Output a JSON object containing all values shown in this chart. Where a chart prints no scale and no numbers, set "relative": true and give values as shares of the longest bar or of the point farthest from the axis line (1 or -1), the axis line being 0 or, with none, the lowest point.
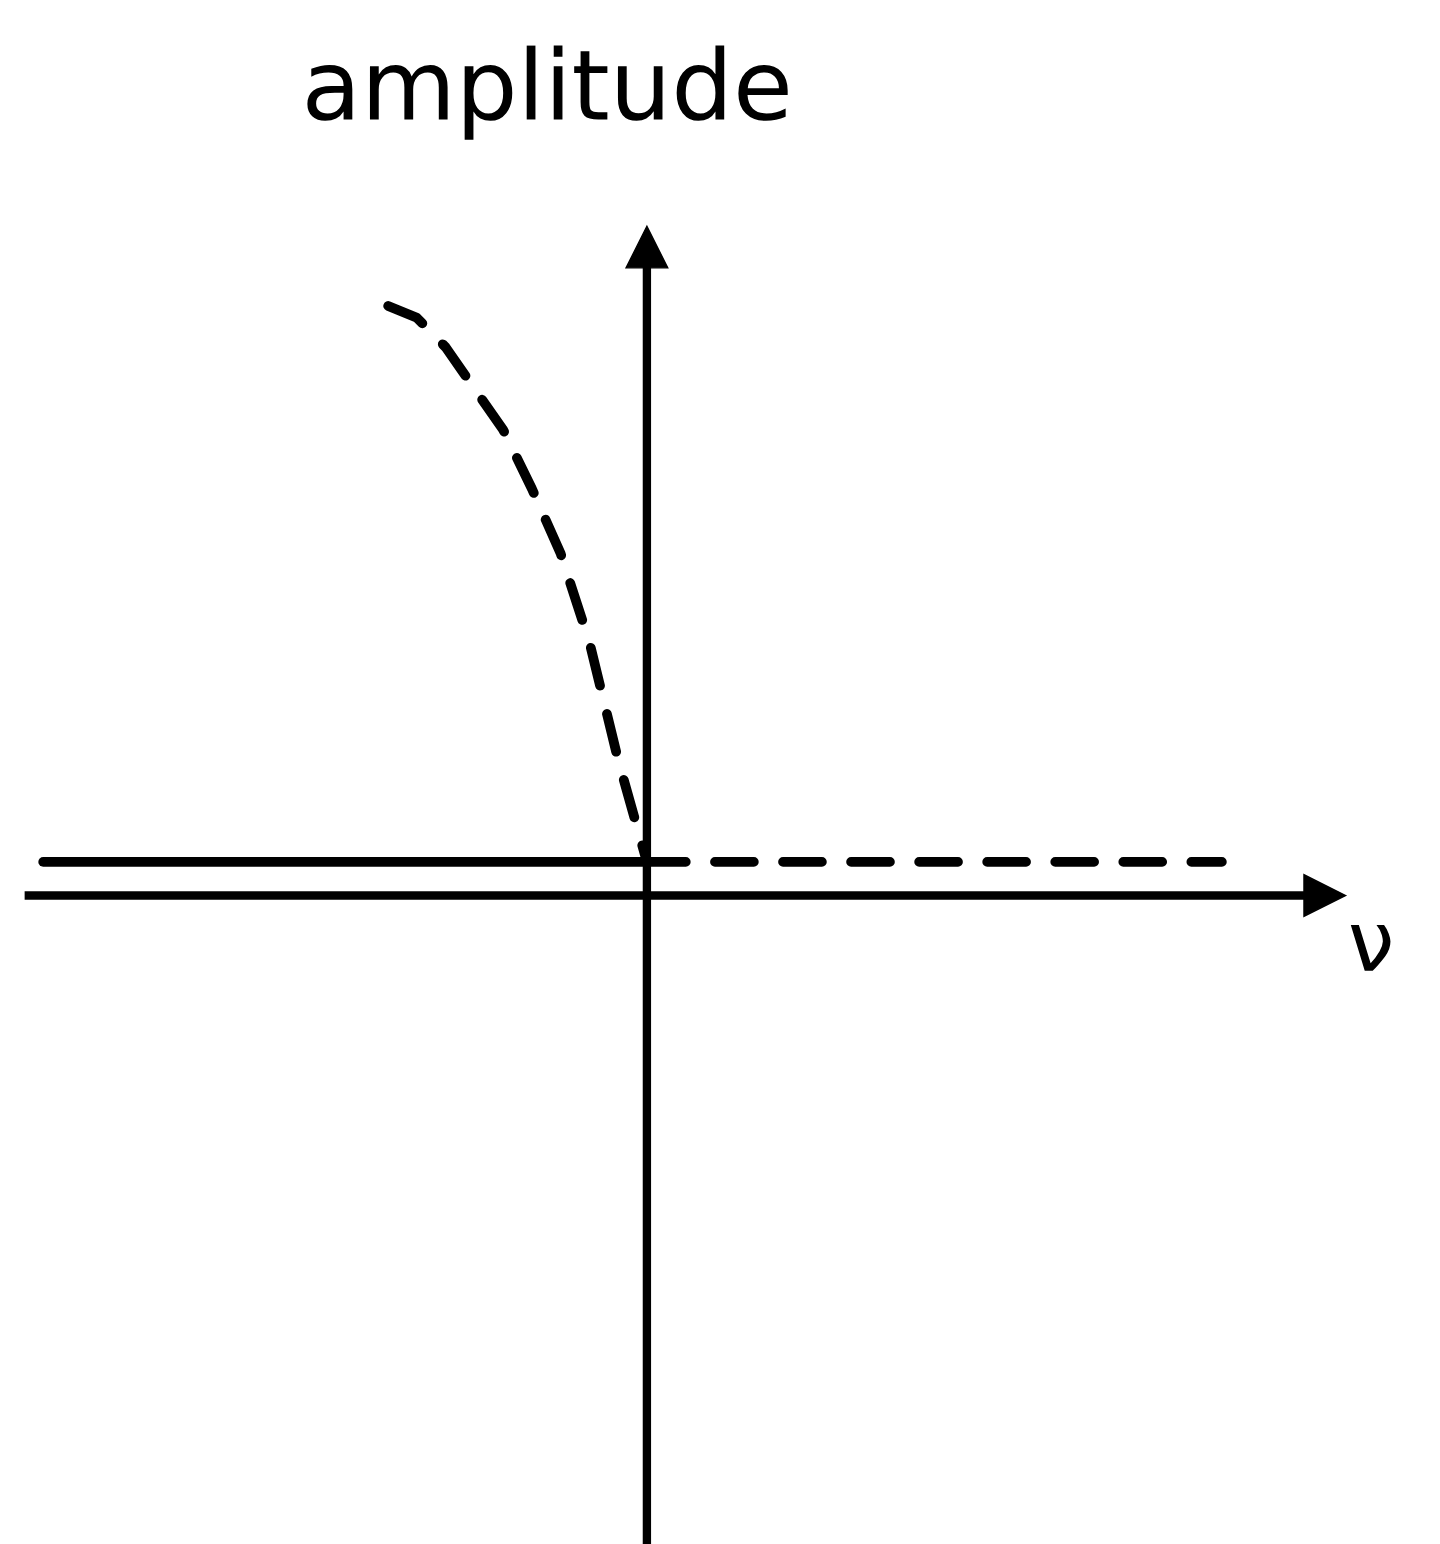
{
  "chart_data": {
    "type": "line",
    "relative": true,
    "xlabel": "ν",
    "ylabel": "amplitude",
    "marker": "none",
    "categories": [
      null,
      null,
      null,
      null,
      null,
      null,
      null,
      null,
      null,
      null,
      null,
      null,
      null,
      null,
      null,
      null,
      null,
      null,
      null,
      null,
      null,
      null,
      null,
      null,
      null,
      null,
      null,
      null,
      null,
      null,
      null,
      null,
      null,
      null,
      null,
      null,
      null,
      null,
      null,
      null,
      null,
      null,
      null
    ],
    "series": [
      {
        "color": "#000000",
        "line_style": "solid",
        "values": [
          0.057,
          0.057,
          0.057,
          0.057,
          0.057,
          0.057,
          0.057,
          0.057,
          0.057,
          0.057,
          0.057,
          0.057,
          0.057,
          0.057,
          0.057,
          0.057,
          0.057,
          0.057,
          0.057,
          0.057,
          0.057,
          0.057,
          null,
          null,
          null,
          null,
          null,
          null,
          null,
          null,
          null,
          null,
          null,
          null,
          null,
          null,
          null,
          null,
          null,
          null,
          null,
          null,
          null
        ]
      },
      {
        "color": "#000000",
        "line_style": "dashed",
        "values": [
          null,
          null,
          null,
          null,
          null,
          null,
          null,
          null,
          null,
          null,
          null,
          null,
          1.0,
          0.98,
          0.93,
          0.86,
          0.79,
          0.69,
          0.58,
          0.43,
          0.23,
          0.057,
          null,
          null,
          null,
          null,
          null,
          null,
          null,
          null,
          null,
          null,
          null,
          null,
          null,
          null,
          null,
          null,
          null,
          null,
          null,
          null,
          null
        ]
      },
      {
        "color": "#000000",
        "line_style": "dashed",
        "values": [
          null,
          null,
          null,
          null,
          null,
          null,
          null,
          null,
          null,
          null,
          null,
          null,
          null,
          null,
          null,
          null,
          null,
          null,
          null,
          null,
          null,
          0.057,
          0.057,
          0.057,
          0.057,
          0.057,
          0.057,
          0.057,
          0.057,
          0.057,
          0.057,
          0.057,
          0.057,
          0.057,
          0.057,
          0.057,
          0.057,
          0.057,
          0.057,
          0.057,
          0.057,
          0.057,
          null
        ]
      }
    ]
  }
}
